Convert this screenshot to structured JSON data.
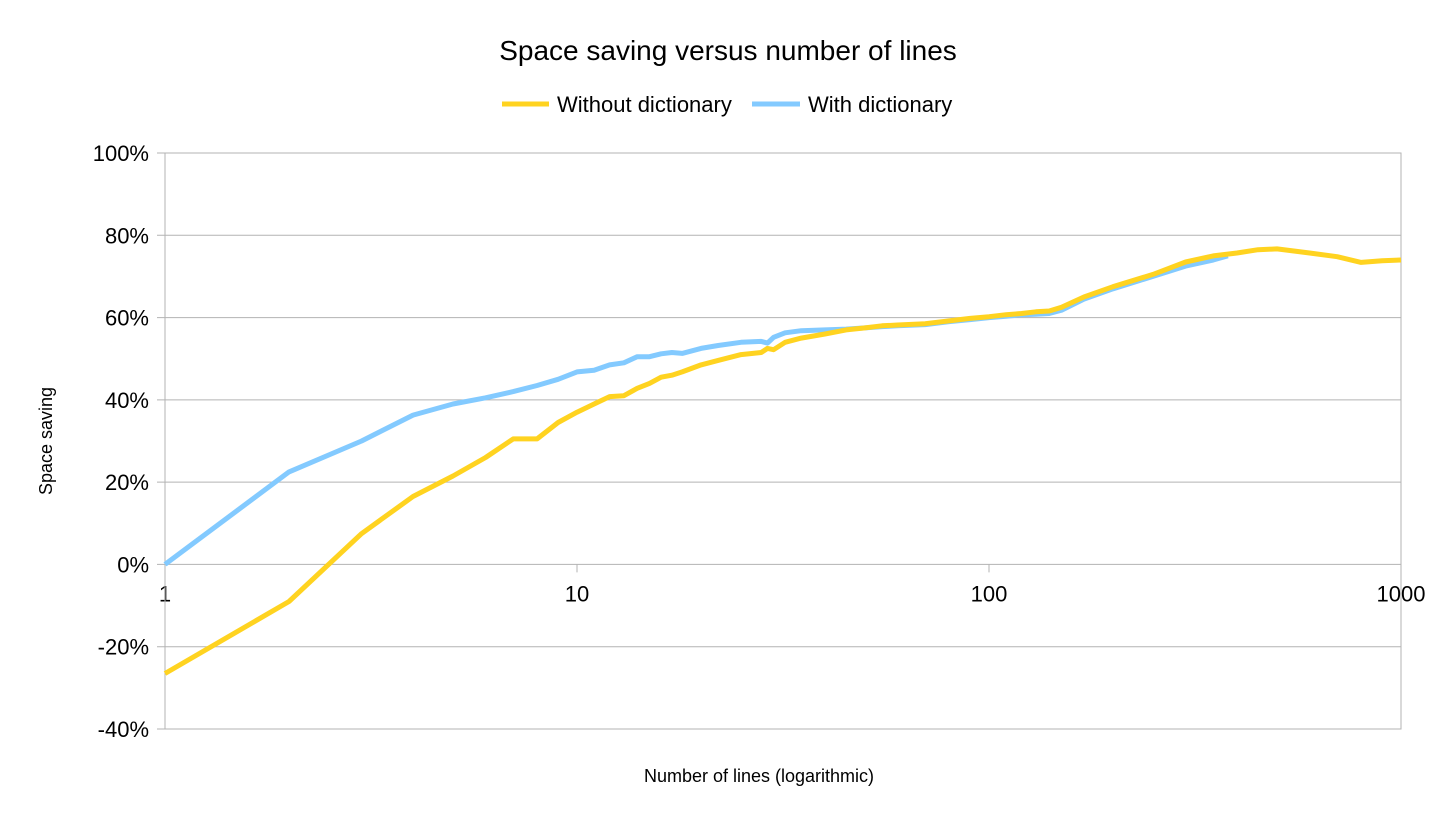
{
  "chart_data": {
    "type": "line",
    "title": "Space saving versus number of lines",
    "xlabel": "Number of lines (logarithmic)",
    "ylabel": "Space saving",
    "xscale": "log",
    "xlim": [
      1,
      1000
    ],
    "ylim": [
      -40,
      100
    ],
    "x_ticks": [
      1,
      10,
      100,
      1000
    ],
    "x_tick_labels": [
      "1",
      "10",
      "100",
      "1000"
    ],
    "y_ticks": [
      -40,
      -20,
      0,
      20,
      40,
      60,
      80,
      100
    ],
    "y_tick_labels": [
      "-40%",
      "-20%",
      "0%",
      "20%",
      "40%",
      "60%",
      "80%",
      "100%"
    ],
    "grid": true,
    "legend_position": "top",
    "series": [
      {
        "name": "Without dictionary",
        "color": "#ffd320",
        "x": [
          1,
          2,
          3,
          4,
          5,
          6,
          7,
          8,
          9,
          10,
          11,
          12,
          13,
          14,
          15,
          16,
          17,
          18,
          20,
          22,
          25,
          28,
          29,
          30,
          32,
          35,
          40,
          45,
          50,
          55,
          60,
          70,
          80,
          90,
          100,
          110,
          120,
          130,
          140,
          150,
          170,
          200,
          250,
          300,
          350,
          400,
          450,
          500,
          600,
          700,
          800,
          900,
          1000
        ],
        "y": [
          -26.5,
          -9,
          7.5,
          16.5,
          21.5,
          26,
          30.5,
          30.5,
          34.5,
          37,
          39,
          40.8,
          41,
          42.8,
          44,
          45.5,
          46,
          46.8,
          48.5,
          49.6,
          51,
          51.5,
          52.5,
          52.2,
          54,
          55,
          56,
          57,
          57.5,
          58,
          58.2,
          58.5,
          59.2,
          59.8,
          60.2,
          60.7,
          61,
          61.4,
          61.6,
          62.5,
          65,
          67.5,
          70.5,
          73.5,
          75,
          75.7,
          76.5,
          76.7,
          75.7,
          74.8,
          73.4,
          73.8,
          74
        ]
      },
      {
        "name": "With dictionary",
        "color": "#83caff",
        "x": [
          1,
          2,
          3,
          4,
          5,
          6,
          7,
          8,
          9,
          10,
          11,
          12,
          13,
          14,
          15,
          16,
          17,
          18,
          20,
          22,
          25,
          28,
          29,
          30,
          32,
          35,
          40,
          45,
          50,
          55,
          60,
          70,
          80,
          90,
          100,
          110,
          120,
          130,
          140,
          150,
          170,
          200,
          250,
          300,
          350,
          380
        ],
        "y": [
          0,
          22.5,
          30,
          36.3,
          39,
          40.5,
          42,
          43.5,
          45,
          46.8,
          47.2,
          48.5,
          49,
          50.5,
          50.5,
          51.2,
          51.5,
          51.3,
          52.5,
          53.2,
          54,
          54.2,
          53.8,
          55.2,
          56.3,
          56.8,
          57,
          57.2,
          57.5,
          57.8,
          58,
          58.3,
          59,
          59.5,
          60,
          60.3,
          60.7,
          60.8,
          61,
          61.8,
          64.5,
          67,
          70,
          72.5,
          74,
          75
        ]
      }
    ]
  }
}
